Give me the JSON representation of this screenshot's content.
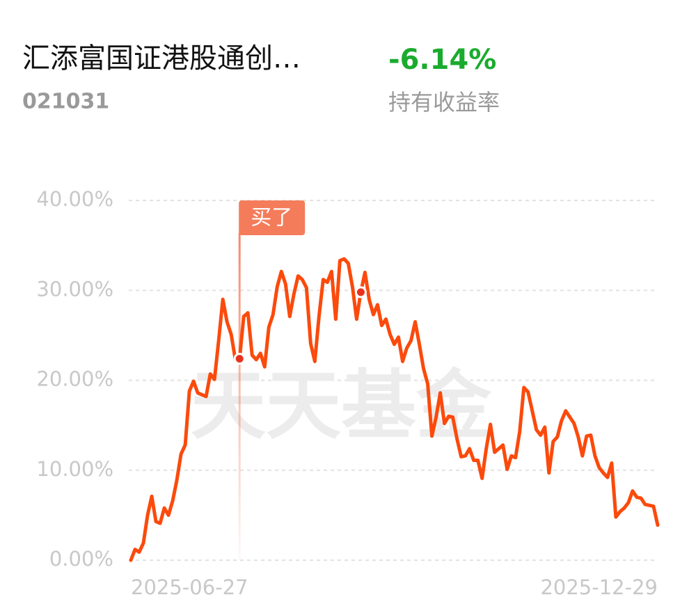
{
  "header": {
    "title": "汇添富国证港股通创…",
    "code": "021031",
    "return": "-6.14%",
    "return_label": "持有收益率"
  },
  "chart_data": {
    "type": "line",
    "watermark": "天天基金",
    "categories": [
      "2025-06-27",
      null,
      null,
      null,
      null,
      null,
      null,
      null,
      null,
      null,
      null,
      null,
      null,
      null,
      null,
      null,
      null,
      null,
      null,
      null,
      null,
      null,
      null,
      null,
      null,
      null,
      null,
      null,
      null,
      null,
      null,
      null,
      null,
      null,
      null,
      null,
      null,
      null,
      null,
      null,
      null,
      null,
      null,
      null,
      null,
      null,
      null,
      null,
      null,
      null,
      null,
      null,
      null,
      null,
      null,
      null,
      null,
      null,
      null,
      null,
      null,
      null,
      null,
      null,
      null,
      null,
      null,
      null,
      null,
      null,
      null,
      null,
      null,
      null,
      null,
      null,
      null,
      null,
      null,
      null,
      null,
      null,
      null,
      null,
      null,
      null,
      null,
      null,
      null,
      null,
      null,
      null,
      null,
      null,
      null,
      null,
      null,
      null,
      null,
      null,
      null,
      null,
      null,
      null,
      null,
      null,
      null,
      null,
      null,
      null,
      null,
      null,
      null,
      null,
      null,
      null,
      null,
      null,
      null,
      null,
      null,
      null,
      null,
      null,
      null,
      null,
      "2025-12-29"
    ],
    "series": [
      {
        "color": "#fb4a0c",
        "values": [
          0,
          1.2,
          0.9,
          1.9,
          5.0,
          7.1,
          4.3,
          4.1,
          5.8,
          5.0,
          6.6,
          8.9,
          11.8,
          12.8,
          18.8,
          19.9,
          18.6,
          18.4,
          18.2,
          20.7,
          20.1,
          24.4,
          29.0,
          26.5,
          25.1,
          22.3,
          22.4,
          27.1,
          27.5,
          22.8,
          22.3,
          23.0,
          21.5,
          25.9,
          27.3,
          30.4,
          32.1,
          30.7,
          27.1,
          29.6,
          31.6,
          31.2,
          30.3,
          24.1,
          22.1,
          27.1,
          31.2,
          30.9,
          32.1,
          26.8,
          33.3,
          33.5,
          33.0,
          30.4,
          26.8,
          29.8,
          32.0,
          29.0,
          27.3,
          28.4,
          26.1,
          26.8,
          25.1,
          24.0,
          24.8,
          22.1,
          23.6,
          24.4,
          26.5,
          24.0,
          21.3,
          19.6,
          13.8,
          15.9,
          18.6,
          15.2,
          16.0,
          15.9,
          13.5,
          11.5,
          11.6,
          12.4,
          11.1,
          11.1,
          9.1,
          12.4,
          15.1,
          12.0,
          12.4,
          12.8,
          10.1,
          11.6,
          11.4,
          14.3,
          19.2,
          18.7,
          16.6,
          14.5,
          13.9,
          14.8,
          9.7,
          13.2,
          13.7,
          15.5,
          16.6,
          15.9,
          15.2,
          13.7,
          11.6,
          13.8,
          13.9,
          11.6,
          10.3,
          9.7,
          9.2,
          10.8,
          4.8,
          5.4,
          5.8,
          6.4,
          7.7,
          7.0,
          6.9,
          6.2,
          6.1,
          6.0,
          3.9
        ]
      }
    ],
    "markers": [
      26,
      55
    ],
    "annotation": {
      "text": "买了",
      "index": 26
    },
    "ylim": [
      0,
      40
    ],
    "yticks": [
      {
        "value": 0,
        "label": "0.00%"
      },
      {
        "value": 10,
        "label": "10.00%"
      },
      {
        "value": 20,
        "label": "20.00%"
      },
      {
        "value": 30,
        "label": "30.00%"
      },
      {
        "value": 40,
        "label": "40.00%"
      }
    ],
    "grid": true
  }
}
